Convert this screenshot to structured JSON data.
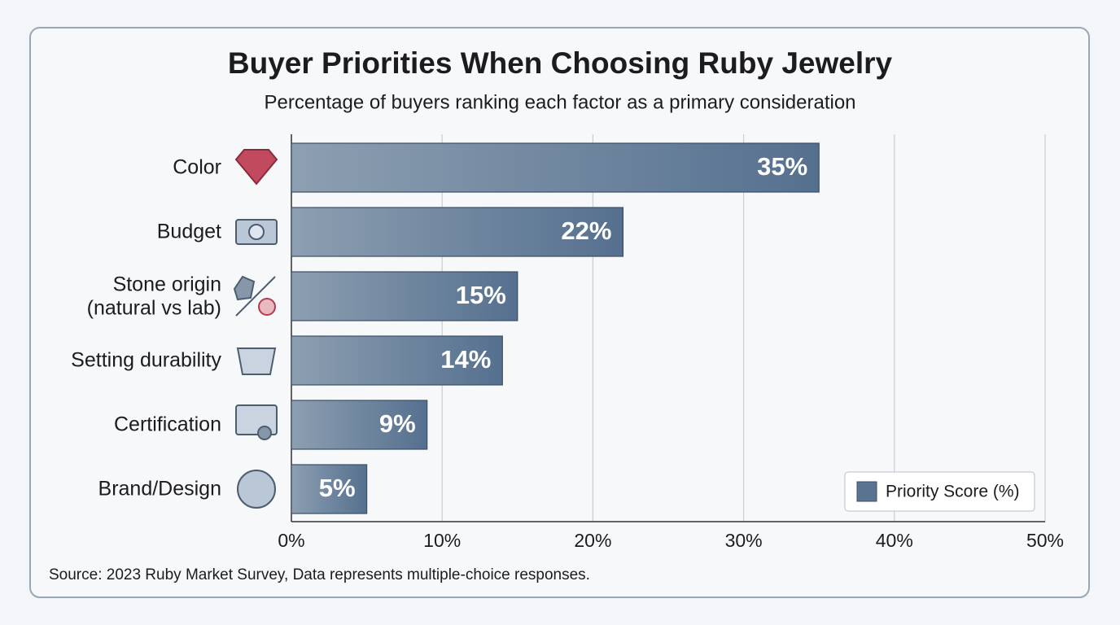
{
  "chart_data": {
    "type": "bar",
    "orientation": "horizontal",
    "title": "Buyer Priorities When Choosing Ruby Jewelry",
    "subtitle": "Percentage of buyers ranking each factor as a primary consideration",
    "categories": [
      "Color",
      "Budget",
      "Stone origin\n(natural vs lab)",
      "Setting durability",
      "Certification",
      "Brand/Design"
    ],
    "series": [
      {
        "name": "Priority Score (%)",
        "color": "#5a7391",
        "values": [
          35,
          22,
          15,
          14,
          9,
          5
        ],
        "value_labels": [
          "35%",
          "22%",
          "15%",
          "14%",
          "9%",
          "5%"
        ]
      }
    ],
    "xlim": [
      0,
      50
    ],
    "xticks": [
      {
        "value": 0,
        "label": "0%"
      },
      {
        "value": 10,
        "label": "10%"
      },
      {
        "value": 20,
        "label": "20%"
      },
      {
        "value": 30,
        "label": "30%"
      },
      {
        "value": 40,
        "label": "40%"
      },
      {
        "value": 50,
        "label": "50%"
      }
    ],
    "grid": true,
    "legend": "lower right",
    "source": "Source: 2023 Ruby Market Survey, Data represents multiple-choice responses."
  }
}
